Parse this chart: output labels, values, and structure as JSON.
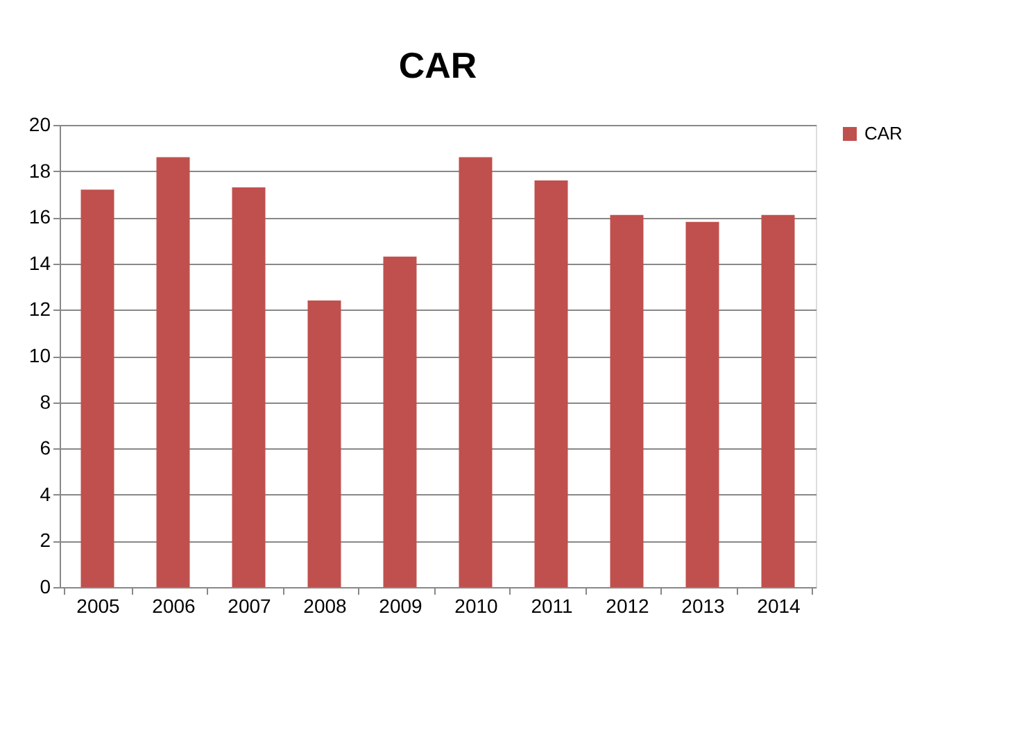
{
  "chart_data": {
    "type": "bar",
    "title": "CAR",
    "categories": [
      "2005",
      "2006",
      "2007",
      "2008",
      "2009",
      "2010",
      "2011",
      "2012",
      "2013",
      "2014"
    ],
    "series": [
      {
        "name": "CAR",
        "color": "#c0504d",
        "values": [
          17.2,
          18.6,
          17.3,
          12.4,
          14.3,
          18.6,
          17.6,
          16.1,
          15.8,
          16.1
        ]
      }
    ],
    "ylim": [
      0,
      20
    ],
    "yticks": [
      0,
      2,
      4,
      6,
      8,
      10,
      12,
      14,
      16,
      18,
      20
    ],
    "grid": "y",
    "legend": "right"
  }
}
